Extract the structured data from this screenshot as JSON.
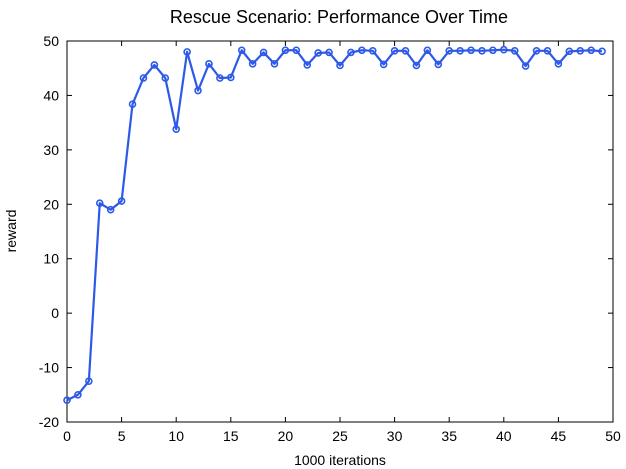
{
  "chart_data": {
    "type": "line",
    "title": "Rescue Scenario: Performance Over Time",
    "xlabel": "1000 iterations",
    "ylabel": "reward",
    "xlim": [
      0,
      50
    ],
    "ylim": [
      -20,
      50
    ],
    "xticks": [
      0,
      5,
      10,
      15,
      20,
      25,
      30,
      35,
      40,
      45,
      50
    ],
    "yticks": [
      -20,
      -10,
      0,
      10,
      20,
      30,
      40,
      50
    ],
    "grid": false,
    "color": "#2d59e8",
    "series": [
      {
        "marker": "circle",
        "x": [
          0,
          1,
          2,
          3,
          4,
          5,
          6,
          7,
          8,
          9,
          10,
          11,
          12,
          13,
          14,
          15,
          16,
          17,
          18,
          19,
          20,
          21,
          22,
          23,
          24,
          25,
          26,
          27,
          28,
          29,
          30,
          31,
          32,
          33,
          34,
          35,
          36,
          37,
          38,
          39,
          40,
          41,
          42,
          43,
          44,
          45,
          46,
          47,
          48,
          49
        ],
        "y": [
          -16,
          -15,
          -12.5,
          20.2,
          19,
          20.6,
          38.4,
          43.2,
          45.6,
          43.2,
          33.8,
          48,
          40.9,
          45.8,
          43.2,
          43.3,
          48.3,
          45.8,
          47.9,
          45.8,
          48.3,
          48.3,
          45.6,
          47.8,
          47.9,
          45.5,
          47.9,
          48.3,
          48.2,
          45.7,
          48.2,
          48.2,
          45.5,
          48.3,
          45.7,
          48.2,
          48.2,
          48.3,
          48.2,
          48.3,
          48.4,
          48.2,
          45.4,
          48.2,
          48.2,
          45.8,
          48.1,
          48.2,
          48.3,
          48.1
        ]
      }
    ]
  }
}
